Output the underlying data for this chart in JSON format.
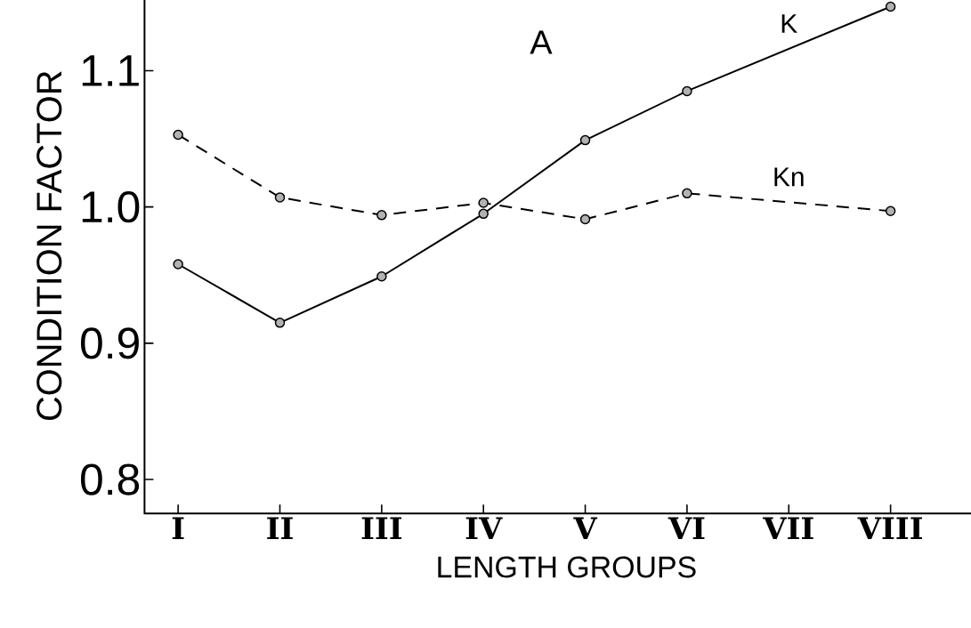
{
  "chart_data": {
    "type": "line",
    "xlabel": "LENGTH GROUPS",
    "ylabel": "CONDITION FACTOR",
    "categories": [
      "I",
      "II",
      "III",
      "IV",
      "V",
      "VI",
      "VII",
      "VIII"
    ],
    "series": [
      {
        "name": "K",
        "color": "#000000",
        "line_style": "solid",
        "values": [
          0.958,
          0.915,
          0.949,
          0.995,
          1.049,
          1.085,
          null,
          1.147
        ]
      },
      {
        "name": "Kn",
        "color": "#000000",
        "line_style": "dashed",
        "values": [
          1.053,
          1.007,
          0.994,
          1.003,
          0.991,
          1.01,
          null,
          0.997
        ]
      }
    ],
    "ylim": [
      0.775,
      1.168
    ],
    "yticks": [
      {
        "value": 0.8,
        "label": "0.8"
      },
      {
        "value": 0.9,
        "label": "0.9"
      },
      {
        "value": 1.0,
        "label": "1.0"
      },
      {
        "value": 1.1,
        "label": "1.1"
      }
    ],
    "annotations": [
      "A"
    ],
    "marker": "circle",
    "grid": false,
    "legend": false
  }
}
